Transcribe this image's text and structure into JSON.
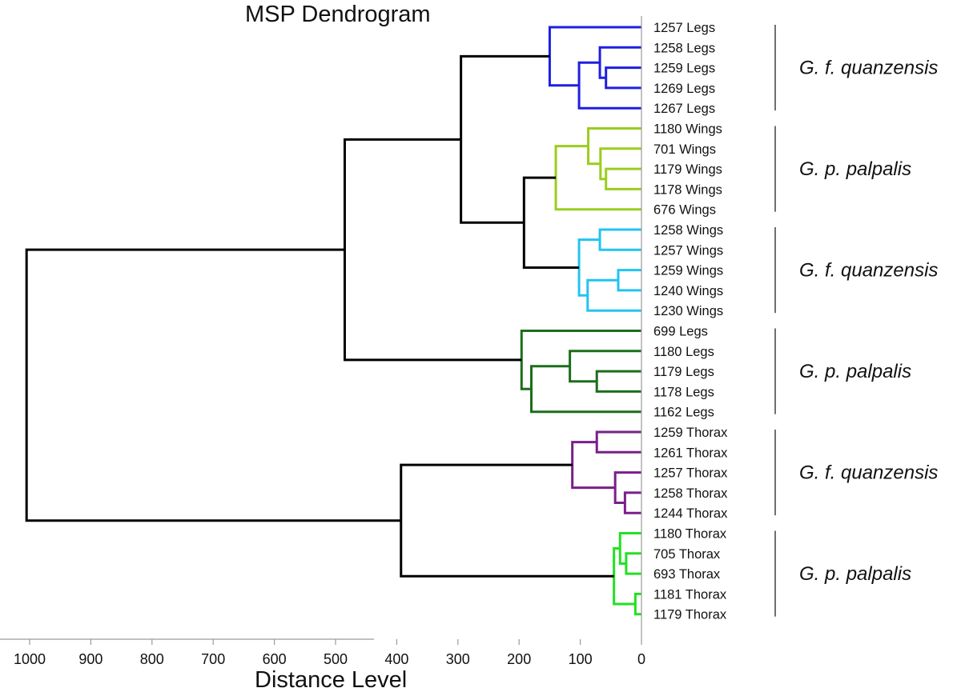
{
  "chart_data": {
    "type": "dendrogram",
    "title": "MSP Dendrogram",
    "xlabel": "Distance Level",
    "xlim": [
      1000,
      0
    ],
    "xticks": [
      1000,
      900,
      800,
      700,
      600,
      500,
      400,
      300,
      200,
      100,
      0
    ],
    "leaves": [
      "1257 Legs",
      "1258 Legs",
      "1259 Legs",
      "1269 Legs",
      "1267 Legs",
      "1180 Wings",
      "701 Wings",
      "1179 Wings",
      "1178 Wings",
      "676 Wings",
      "1258 Wings",
      "1257 Wings",
      "1259 Wings",
      "1240 Wings",
      "1230 Wings",
      "699 Legs",
      "1180 Legs",
      "1179 Legs",
      "1178 Legs",
      "1162 Legs",
      "1259 Thorax",
      "1261 Thorax",
      "1257 Thorax",
      "1258 Thorax",
      "1244 Thorax",
      "1180 Thorax",
      "705 Thorax",
      "693 Thorax",
      "1181 Thorax",
      "1179 Thorax"
    ],
    "clusters": [
      {
        "label": "G. f. quanzensis",
        "color": "#1f1fe0",
        "first_leaf": 0,
        "last_leaf": 4
      },
      {
        "label": "G. p. palpalis",
        "color": "#9acd1e",
        "first_leaf": 5,
        "last_leaf": 9
      },
      {
        "label": "G. f. quanzensis",
        "color": "#22c4f0",
        "first_leaf": 10,
        "last_leaf": 14
      },
      {
        "label": "G. p. palpalis",
        "color": "#1b6e1b",
        "first_leaf": 15,
        "last_leaf": 19
      },
      {
        "label": "G. f. quanzensis",
        "color": "#7a1f8a",
        "first_leaf": 20,
        "last_leaf": 24
      },
      {
        "label": "G. p. palpalis",
        "color": "#22e022",
        "first_leaf": 25,
        "last_leaf": 29
      }
    ],
    "merges": [
      {
        "id": "c1",
        "left": 2,
        "right": 3,
        "height": 58,
        "color": "#1f1fe0"
      },
      {
        "id": "c2",
        "left": 1,
        "right": "c1",
        "height": 68,
        "color": "#1f1fe0"
      },
      {
        "id": "c3",
        "left": "c2",
        "right": 4,
        "height": 102,
        "color": "#1f1fe0"
      },
      {
        "id": "c4",
        "left": 0,
        "right": "c3",
        "height": 150,
        "color": "#1f1fe0"
      },
      {
        "id": "c5",
        "left": 7,
        "right": 8,
        "height": 58,
        "color": "#9acd1e"
      },
      {
        "id": "c6",
        "left": 6,
        "right": "c5",
        "height": 67,
        "color": "#9acd1e"
      },
      {
        "id": "c7",
        "left": 5,
        "right": "c6",
        "height": 87,
        "color": "#9acd1e"
      },
      {
        "id": "c8",
        "left": "c7",
        "right": 9,
        "height": 140,
        "color": "#9acd1e"
      },
      {
        "id": "c9",
        "left": 12,
        "right": 13,
        "height": 38,
        "color": "#22c4f0"
      },
      {
        "id": "c10",
        "left": 10,
        "right": 11,
        "height": 68,
        "color": "#22c4f0"
      },
      {
        "id": "c11",
        "left": "c9",
        "right": 14,
        "height": 88,
        "color": "#22c4f0"
      },
      {
        "id": "c12",
        "left": "c10",
        "right": "c11",
        "height": 102,
        "color": "#22c4f0"
      },
      {
        "id": "c13",
        "left": "c8",
        "right": "c12",
        "height": 192,
        "color": "#000000"
      },
      {
        "id": "c14",
        "left": "c4",
        "right": "c13",
        "height": 295,
        "color": "#000000"
      },
      {
        "id": "c15",
        "left": 17,
        "right": 18,
        "height": 73,
        "color": "#1b6e1b"
      },
      {
        "id": "c16",
        "left": 16,
        "right": "c15",
        "height": 117,
        "color": "#1b6e1b"
      },
      {
        "id": "c17",
        "left": "c16",
        "right": 19,
        "height": 180,
        "color": "#1b6e1b"
      },
      {
        "id": "c18",
        "left": 15,
        "right": "c17",
        "height": 196,
        "color": "#1b6e1b"
      },
      {
        "id": "c19",
        "left": "c14",
        "right": "c18",
        "height": 485,
        "color": "#000000"
      },
      {
        "id": "c20",
        "left": 23,
        "right": 24,
        "height": 27,
        "color": "#7a1f8a"
      },
      {
        "id": "c21",
        "left": 22,
        "right": "c20",
        "height": 43,
        "color": "#7a1f8a"
      },
      {
        "id": "c22",
        "left": 20,
        "right": 21,
        "height": 73,
        "color": "#7a1f8a"
      },
      {
        "id": "c23",
        "left": "c22",
        "right": "c21",
        "height": 113,
        "color": "#7a1f8a"
      },
      {
        "id": "c24",
        "left": 26,
        "right": 27,
        "height": 25,
        "color": "#22e022"
      },
      {
        "id": "c25",
        "left": 25,
        "right": "c24",
        "height": 35,
        "color": "#22e022"
      },
      {
        "id": "c26",
        "left": 28,
        "right": 29,
        "height": 10,
        "color": "#22e022"
      },
      {
        "id": "c27",
        "left": "c25",
        "right": "c26",
        "height": 45,
        "color": "#22e022"
      },
      {
        "id": "c28",
        "left": "c23",
        "right": "c27",
        "height": 393,
        "color": "#000000"
      },
      {
        "id": "c29",
        "left": "c19",
        "right": "c28",
        "height": 1005,
        "color": "#000000"
      }
    ]
  }
}
